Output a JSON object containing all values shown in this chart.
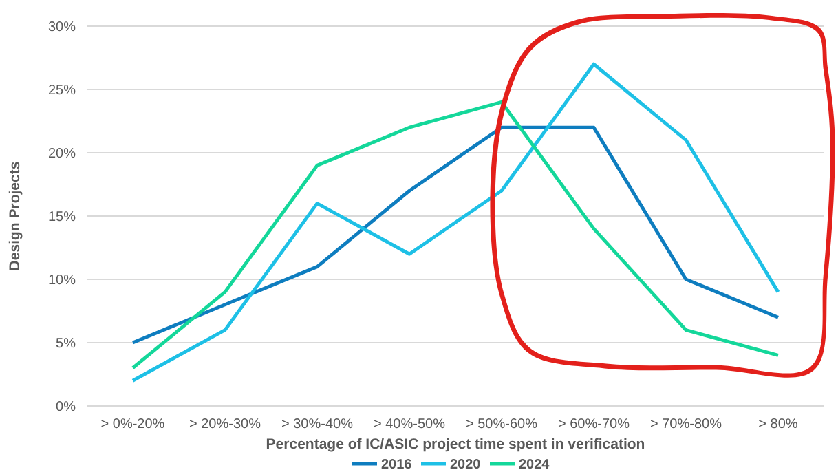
{
  "chart_data": {
    "type": "line",
    "xlabel": "Percentage of IC/ASIC project time spent in verification",
    "ylabel": "Design Projects",
    "categories": [
      "> 0%-20%",
      "> 20%-30%",
      "> 30%-40%",
      "> 40%-50%",
      "> 50%-60%",
      "> 60%-70%",
      "> 70%-80%",
      "> 80%"
    ],
    "series": [
      {
        "name": "2016",
        "color": "#0e7dbf",
        "values": [
          5,
          8,
          11,
          17,
          22,
          22,
          10,
          7
        ]
      },
      {
        "name": "2020",
        "color": "#1ec0e6",
        "values": [
          2,
          6,
          16,
          12,
          17,
          27,
          21,
          9
        ]
      },
      {
        "name": "2024",
        "color": "#14d79a",
        "values": [
          3,
          9,
          19,
          22,
          24,
          14,
          6,
          4
        ]
      }
    ],
    "ylim": [
      0,
      30
    ],
    "yticks": [
      {
        "value": 0,
        "label": "0%"
      },
      {
        "value": 5,
        "label": "5%"
      },
      {
        "value": 10,
        "label": "10%"
      },
      {
        "value": 15,
        "label": "15%"
      },
      {
        "value": 20,
        "label": "20%"
      },
      {
        "value": 25,
        "label": "25%"
      },
      {
        "value": 30,
        "label": "30%"
      }
    ],
    "grid": "y",
    "legend": "bottom",
    "marker": "none",
    "line_style": "solid"
  }
}
